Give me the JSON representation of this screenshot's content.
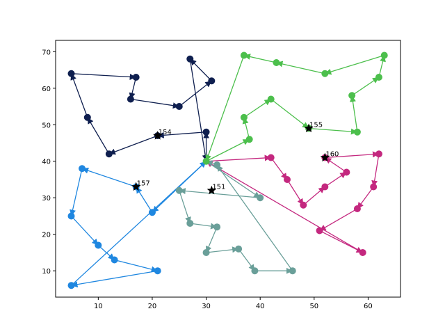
{
  "chart_data": {
    "type": "line",
    "title": "",
    "xlabel": "",
    "ylabel": "",
    "xlim": [
      2.1,
      66
    ],
    "ylim": [
      2.8,
      73.1
    ],
    "xticks": [
      10,
      20,
      30,
      40,
      50,
      60
    ],
    "yticks": [
      10,
      20,
      30,
      40,
      50,
      60,
      70
    ],
    "grid": false,
    "depot": [
      30,
      40
    ],
    "series": [
      {
        "color": "#0f1f4f",
        "points": [
          [
            30,
            40
          ],
          [
            30,
            48
          ],
          [
            21,
            47
          ],
          [
            12,
            42
          ],
          [
            8,
            52
          ],
          [
            5,
            64
          ],
          [
            17,
            63
          ],
          [
            16,
            57
          ],
          [
            25,
            55
          ],
          [
            31,
            62
          ],
          [
            27,
            68
          ],
          [
            30,
            40
          ]
        ],
        "star": [
          21,
          47
        ],
        "label": "154"
      },
      {
        "color": "#4cbf4c",
        "points": [
          [
            30,
            40
          ],
          [
            38,
            46
          ],
          [
            37,
            52
          ],
          [
            42,
            57
          ],
          [
            49,
            49
          ],
          [
            58,
            48
          ],
          [
            57,
            58
          ],
          [
            62,
            63
          ],
          [
            63,
            69
          ],
          [
            52,
            64
          ],
          [
            43,
            67
          ],
          [
            37,
            69
          ],
          [
            30,
            40
          ]
        ],
        "star": [
          49,
          49
        ],
        "label": "155"
      },
      {
        "color": "#c4287f",
        "points": [
          [
            30,
            40
          ],
          [
            42,
            41
          ],
          [
            45,
            35
          ],
          [
            48,
            28
          ],
          [
            52,
            33
          ],
          [
            56,
            37
          ],
          [
            52,
            41
          ],
          [
            62,
            42
          ],
          [
            61,
            33
          ],
          [
            58,
            27
          ],
          [
            51,
            21
          ],
          [
            59,
            15
          ],
          [
            30,
            40
          ]
        ],
        "star": [
          52,
          41
        ],
        "label": "160"
      },
      {
        "color": "#1f87e0",
        "points": [
          [
            30,
            40
          ],
          [
            20,
            26
          ],
          [
            17,
            33
          ],
          [
            7,
            38
          ],
          [
            5,
            25
          ],
          [
            10,
            17
          ],
          [
            13,
            13
          ],
          [
            21,
            10
          ],
          [
            5,
            6
          ],
          [
            30,
            40
          ]
        ],
        "star": [
          17,
          33
        ],
        "label": "157"
      },
      {
        "color": "#6a9f99",
        "points": [
          [
            30,
            40
          ],
          [
            40,
            30
          ],
          [
            25,
            32
          ],
          [
            27,
            23
          ],
          [
            32,
            22
          ],
          [
            30,
            15
          ],
          [
            36,
            16
          ],
          [
            39,
            10
          ],
          [
            46,
            10
          ],
          [
            32,
            39
          ],
          [
            30,
            40
          ]
        ],
        "star": [
          31,
          32
        ],
        "label": "151"
      }
    ]
  }
}
